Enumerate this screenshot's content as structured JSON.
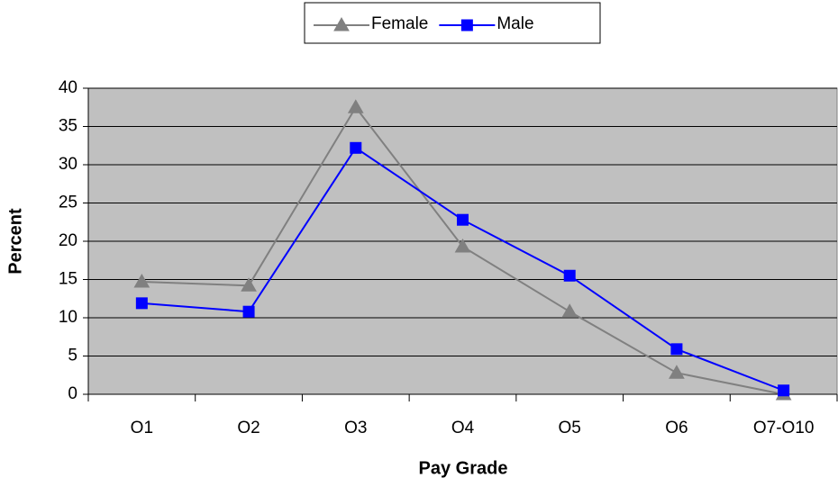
{
  "chart_data": {
    "type": "line",
    "x_label": "Pay Grade",
    "y_label": "Percent",
    "categories": [
      "O1",
      "O2",
      "O3",
      "O4",
      "O5",
      "O6",
      "O7-O10"
    ],
    "series": [
      {
        "name": "Female",
        "color": "#808080",
        "marker": "triangle",
        "values": [
          14.7,
          14.2,
          37.5,
          19.3,
          10.8,
          2.8,
          0
        ]
      },
      {
        "name": "Male",
        "color": "#0000ff",
        "marker": "square",
        "values": [
          11.9,
          10.8,
          32.2,
          22.8,
          15.5,
          5.9,
          0.5
        ]
      }
    ],
    "ylim": [
      0,
      40
    ],
    "yticks": [
      0,
      5,
      10,
      15,
      20,
      25,
      30,
      35,
      40
    ],
    "grid": true,
    "legend": "top",
    "plot_background": "#c0c0c0"
  }
}
